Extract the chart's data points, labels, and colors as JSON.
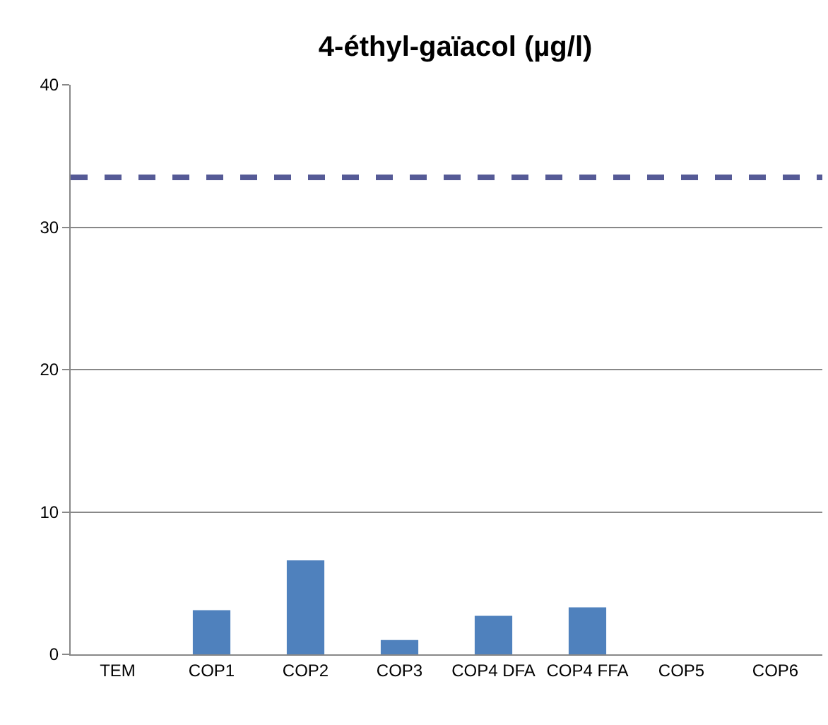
{
  "chart_data": {
    "type": "bar",
    "title": "4-éthyl-gaïacol (µg/l)",
    "categories": [
      "TEM",
      "COP1",
      "COP2",
      "COP3",
      "COP4 DFA",
      "COP4 FFA",
      "COP5",
      "COP6"
    ],
    "values": [
      0,
      3.1,
      6.6,
      1.0,
      2.7,
      3.3,
      0,
      0
    ],
    "color": "#4f81bd",
    "ylim": [
      0,
      40
    ],
    "yticks": [
      0,
      10,
      20,
      30,
      40
    ],
    "grid": "y",
    "ref_lines": [
      {
        "axis": "y",
        "value": 33.5,
        "color": "#555a96",
        "line_style": "dashed"
      }
    ]
  }
}
